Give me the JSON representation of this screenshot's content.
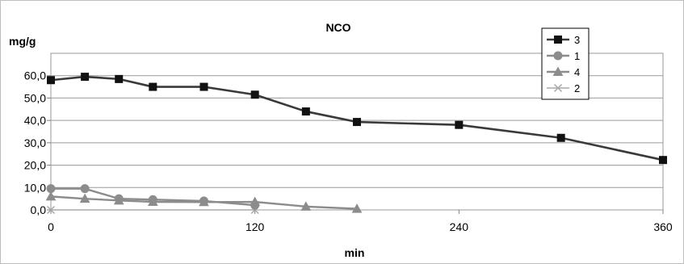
{
  "chart_data": {
    "type": "line",
    "title": "NCO",
    "xlabel": "min",
    "ylabel": "mg/g",
    "xlim": [
      0,
      360
    ],
    "ylim": [
      0,
      70
    ],
    "xticks": [
      {
        "value": 0,
        "label": "0"
      },
      {
        "value": 120,
        "label": "120"
      },
      {
        "value": 240,
        "label": "240"
      },
      {
        "value": 360,
        "label": "360"
      }
    ],
    "yticks": [
      {
        "value": 0,
        "label": "0,0"
      },
      {
        "value": 10,
        "label": "10,0"
      },
      {
        "value": 20,
        "label": "20,0"
      },
      {
        "value": 30,
        "label": "30,0"
      },
      {
        "value": 40,
        "label": "40,0"
      },
      {
        "value": 50,
        "label": "50,0"
      },
      {
        "value": 60,
        "label": "60,0"
      }
    ],
    "grid": "horizontal",
    "legend": "top-right",
    "series": [
      {
        "name": "3",
        "marker": "square",
        "color": "#3a3a3a",
        "width": 2.6,
        "x": [
          0,
          20,
          40,
          60,
          90,
          120,
          150,
          180,
          240,
          300,
          360
        ],
        "y": [
          58.0,
          59.5,
          58.5,
          55.0,
          55.0,
          51.5,
          44.0,
          39.3,
          38.0,
          32.2,
          22.3
        ]
      },
      {
        "name": "1",
        "marker": "circle",
        "color": "#8c8c8c",
        "width": 2.4,
        "x": [
          0,
          20,
          40,
          60,
          90,
          120
        ],
        "y": [
          9.5,
          9.5,
          5.0,
          4.6,
          4.0,
          2.1
        ]
      },
      {
        "name": "4",
        "marker": "triangle",
        "color": "#8c8c8c",
        "width": 2.4,
        "x": [
          0,
          20,
          40,
          60,
          90,
          120,
          150,
          180
        ],
        "y": [
          6.0,
          5.0,
          4.2,
          3.6,
          3.5,
          3.6,
          1.5,
          0.5
        ]
      },
      {
        "name": "2",
        "marker": "x",
        "color": "#a8a8a8",
        "width": 1.5,
        "x": [
          0,
          120
        ],
        "y": [
          0.0,
          0.0
        ]
      }
    ]
  }
}
